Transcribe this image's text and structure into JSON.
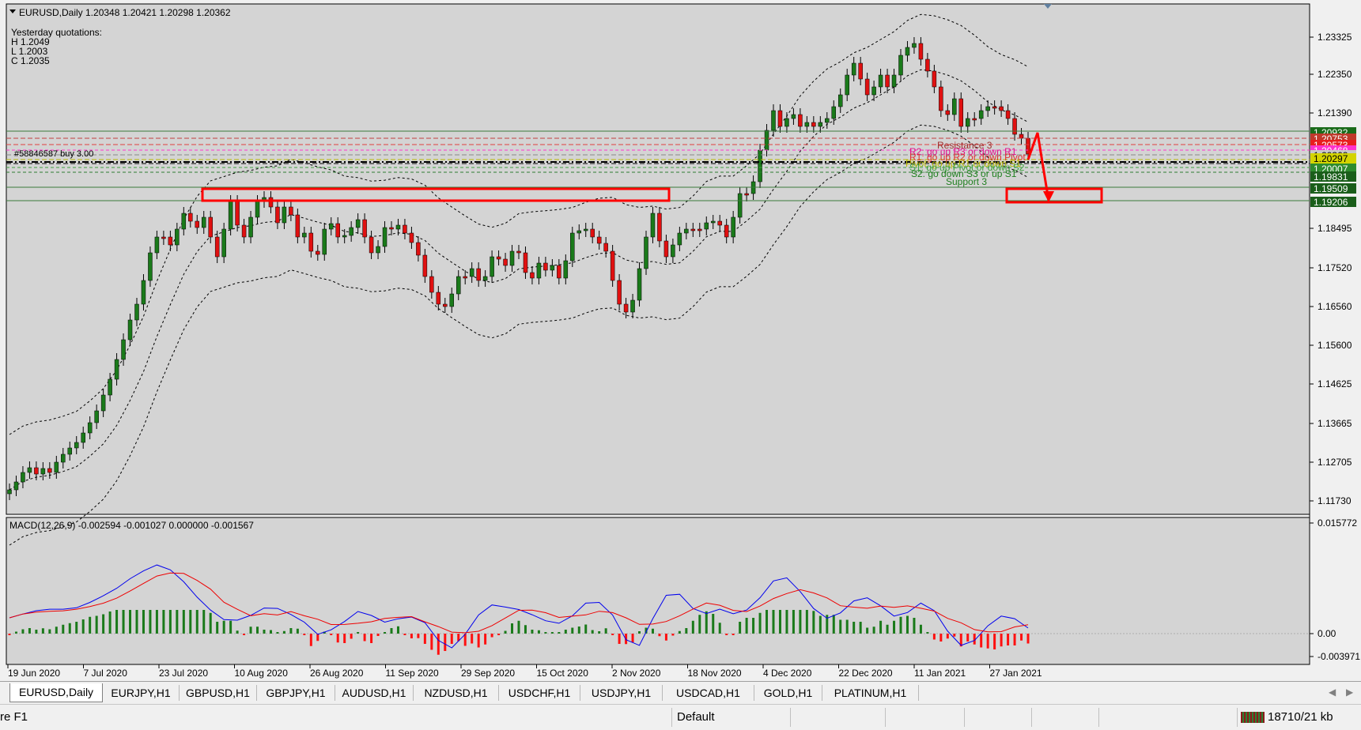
{
  "header": {
    "symbol_line": "EURUSD,Daily  1.20348 1.20421 1.20298 1.20362",
    "quotes_title": "Yesterday quotations:",
    "high": "H 1.2049",
    "low": "L 1.2003",
    "close": "C 1.2035"
  },
  "price_axis": {
    "labels": [
      "1.23325",
      "1.22350",
      "1.21390",
      "1.18495",
      "1.17520",
      "1.16560",
      "1.15600",
      "1.14625",
      "1.13665",
      "1.12705",
      "1.11730"
    ],
    "levels": [
      {
        "text": "1.20932",
        "bg": "#1a6b1a"
      },
      {
        "text": "1.20753",
        "bg": "#c0392b"
      },
      {
        "text": "1.20573",
        "bg": "#e81e1e"
      },
      {
        "text": "1.20468",
        "bg": "#ff33cc"
      },
      {
        "text": "1.20362",
        "bg": "#c8c8c8"
      },
      {
        "text": "1.20297",
        "bg": "#d4d400"
      },
      {
        "text": "1.20007",
        "bg": "#2e8b2e"
      },
      {
        "text": "1.19831",
        "bg": "#1a5e1a"
      },
      {
        "text": "1.19509",
        "bg": "#1a5e1a"
      },
      {
        "text": "1.19206",
        "bg": "#1a5e1a"
      }
    ]
  },
  "level_labels": {
    "resistance3": "Resistance 3",
    "r2": "R2: go up R3 or down R1",
    "r1": "R1: go up R2 or down Pivot",
    "pivot": "Pivot: go up R1 or down S1",
    "s1": "S1: go up Pivot or down S2",
    "s2": "S2: go down S3 or up S1",
    "support3": "Support 3",
    "order": "#58846587 buy 3.00"
  },
  "macd": {
    "title": "MACD(12,26,9) -0.002594 -0.001027 0.000000 -0.001567",
    "axis_labels": [
      "0.015772",
      "0.00",
      "-0.003971"
    ]
  },
  "time_axis": {
    "labels": [
      "19 Jun 2020",
      "7 Jul 2020",
      "23 Jul 2020",
      "10 Aug 2020",
      "26 Aug 2020",
      "11 Sep 2020",
      "29 Sep 2020",
      "15 Oct 2020",
      "2 Nov 2020",
      "18 Nov 2020",
      "4 Dec 2020",
      "22 Dec 2020",
      "11 Jan 2021",
      "27 Jan 2021"
    ]
  },
  "tabs": [
    "EURUSD,Daily",
    "EURJPY,H1",
    "GBPUSD,H1",
    "GBPJPY,H1",
    "AUDUSD,H1",
    "NZDUSD,H1",
    "USDCHF,H1",
    "USDJPY,H1",
    "USDCAD,H1",
    "GOLD,H1",
    "PLATINUM,H1"
  ],
  "statusbar": {
    "help": "re F1",
    "profile": "Default",
    "traffic": "18710/21 kb"
  },
  "colors": {
    "bull": "#1a7a1a",
    "bear": "#e01010",
    "macd_main": "#0000ee",
    "macd_signal": "#ee0000",
    "accent_box": "#ff0000"
  }
}
